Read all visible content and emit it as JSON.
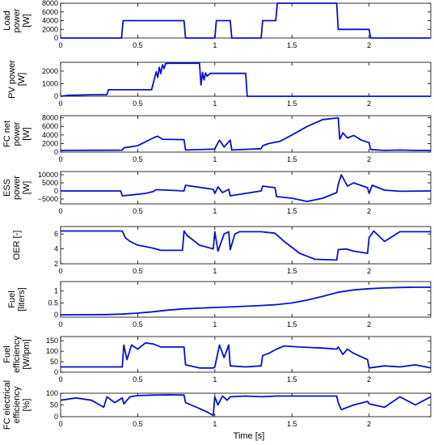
{
  "chart_data": {
    "type": "line",
    "xlabel": "Time [s]",
    "xlim": [
      0,
      2.4
    ],
    "xticks": [
      0,
      0.5,
      1,
      1.5,
      2
    ],
    "xtick_labels": [
      "0",
      "0.5",
      "1",
      "1.5",
      "2"
    ],
    "line_color": "#0a10c8",
    "panels": [
      {
        "id": "load",
        "ylabel_lines": [
          "Load",
          "power",
          "[W]"
        ],
        "ylim": [
          0,
          8000
        ],
        "yticks": [
          0,
          2000,
          4000,
          6000,
          8000
        ],
        "ytick_labels": [
          "0",
          "2000",
          "4000",
          "6000",
          "8000"
        ],
        "series": [
          {
            "x": [
              0,
              0.395,
              0.405,
              0.8,
              0.81,
              1.0,
              1.01,
              1.1,
              1.11,
              1.3,
              1.31,
              1.395,
              1.405,
              1.79,
              1.8,
              2.0,
              2.01,
              2.4
            ],
            "y": [
              0,
              0,
              4000,
              4000,
              0,
              0,
              4000,
              4000,
              0,
              0,
              4000,
              4000,
              8000,
              8000,
              2000,
              2000,
              0,
              0
            ]
          }
        ]
      },
      {
        "id": "pv",
        "ylabel_lines": [
          "PV power",
          "[W]"
        ],
        "ylim": [
          0,
          2700
        ],
        "yticks": [
          0,
          1000,
          2000
        ],
        "ytick_labels": [
          "0",
          "1000",
          "2000"
        ],
        "series": [
          {
            "x": [
              0,
              0.05,
              0.2,
              0.3,
              0.31,
              0.59,
              0.6,
              0.62,
              0.63,
              0.64,
              0.65,
              0.66,
              0.67,
              0.68,
              0.7,
              0.9,
              0.91,
              0.92,
              0.93,
              0.94,
              0.95,
              0.97,
              1.2,
              1.21,
              2.4
            ],
            "y": [
              0,
              80,
              120,
              130,
              520,
              520,
              1000,
              1950,
              1500,
              2300,
              1800,
              2500,
              2200,
              2600,
              2620,
              2620,
              900,
              1900,
              1300,
              1850,
              1600,
              1820,
              1820,
              0,
              0
            ]
          }
        ]
      },
      {
        "id": "fc",
        "ylabel_lines": [
          "FC net",
          "power",
          "[W]"
        ],
        "ylim": [
          0,
          8500
        ],
        "yticks": [
          0,
          2000,
          4000,
          6000,
          8000
        ],
        "ytick_labels": [
          "0",
          "2000",
          "4000",
          "6000",
          "8000"
        ],
        "series": [
          {
            "x": [
              0,
              0.4,
              0.41,
              0.5,
              0.55,
              0.6,
              0.63,
              0.66,
              0.8,
              0.81,
              1.0,
              1.01,
              1.03,
              1.06,
              1.1,
              1.11,
              1.3,
              1.31,
              1.35,
              1.42,
              1.5,
              1.6,
              1.7,
              1.8,
              1.81,
              1.83,
              1.86,
              1.9,
              1.95,
              2.0,
              2.01,
              2.1,
              2.2,
              2.3,
              2.4
            ],
            "y": [
              400,
              450,
              1000,
              1500,
              2400,
              3300,
              3700,
              3000,
              2900,
              500,
              700,
              1500,
              2800,
              1200,
              2800,
              500,
              800,
              1500,
              2000,
              2500,
              4000,
              6000,
              7600,
              8000,
              3000,
              4500,
              3300,
              3900,
              2800,
              2200,
              600,
              400,
              500,
              400,
              400
            ]
          }
        ]
      },
      {
        "id": "ess",
        "ylabel_lines": [
          "ESS",
          "power",
          "[W]"
        ],
        "ylim": [
          -8000,
          12000
        ],
        "yticks": [
          -5000,
          0,
          5000,
          10000
        ],
        "ytick_labels": [
          "−5000",
          "0",
          "5000",
          "10000"
        ],
        "series": [
          {
            "x": [
              0,
              0.39,
              0.4,
              0.45,
              0.55,
              0.6,
              0.62,
              0.8,
              0.81,
              0.99,
              1.0,
              1.02,
              1.05,
              1.09,
              1.1,
              1.3,
              1.31,
              1.39,
              1.4,
              1.5,
              1.6,
              1.7,
              1.79,
              1.8,
              1.82,
              1.86,
              1.9,
              1.99,
              2.0,
              2.02,
              2.1,
              2.2,
              2.4
            ],
            "y": [
              0,
              0,
              -3000,
              -2600,
              -1500,
              -400,
              800,
              0,
              3500,
              1000,
              -1500,
              2500,
              -1000,
              1000,
              -3000,
              0,
              3000,
              2000,
              -3500,
              -4500,
              -6500,
              -4500,
              -1000,
              4000,
              10000,
              3000,
              5000,
              2000,
              -1500,
              3500,
              500,
              -200,
              0
            ]
          }
        ]
      },
      {
        "id": "oer",
        "ylabel_lines": [
          "OER [-]"
        ],
        "ylim": [
          2,
          7
        ],
        "yticks": [
          2,
          4,
          6
        ],
        "ytick_labels": [
          "2",
          "4",
          "6"
        ],
        "series": [
          {
            "x": [
              0,
              0.4,
              0.42,
              0.45,
              0.5,
              0.55,
              0.6,
              0.65,
              0.79,
              0.8,
              0.82,
              0.9,
              0.99,
              1.0,
              1.02,
              1.06,
              1.09,
              1.1,
              1.13,
              1.16,
              1.2,
              1.3,
              1.39,
              1.45,
              1.55,
              1.65,
              1.79,
              1.8,
              1.85,
              1.9,
              1.99,
              2.0,
              2.03,
              2.1,
              2.2,
              2.4
            ],
            "y": [
              6.4,
              6.4,
              5.5,
              5.0,
              4.5,
              4.3,
              4.1,
              3.8,
              3.8,
              6.4,
              5.8,
              4.5,
              4.0,
              6.3,
              3.7,
              6.0,
              6.3,
              3.9,
              6.0,
              6.3,
              6.3,
              6.3,
              6.1,
              5.0,
              3.4,
              2.6,
              2.5,
              3.9,
              4.0,
              3.7,
              3.4,
              5.5,
              6.4,
              5.0,
              6.3,
              6.3
            ]
          }
        ]
      },
      {
        "id": "fuel",
        "ylabel_lines": [
          "Fuel",
          "[liters]"
        ],
        "ylim": [
          -0.1,
          1.4
        ],
        "yticks": [
          0,
          0.5,
          1
        ],
        "ytick_labels": [
          "0",
          "0.5",
          "1"
        ],
        "series": [
          {
            "x": [
              0,
              0.3,
              0.4,
              0.5,
              0.6,
              0.7,
              0.8,
              0.9,
              1.0,
              1.1,
              1.2,
              1.3,
              1.4,
              1.5,
              1.6,
              1.7,
              1.8,
              1.9,
              2.0,
              2.1,
              2.2,
              2.3,
              2.4
            ],
            "y": [
              0,
              0.01,
              0.03,
              0.07,
              0.13,
              0.2,
              0.25,
              0.28,
              0.31,
              0.33,
              0.36,
              0.39,
              0.43,
              0.5,
              0.62,
              0.78,
              0.95,
              1.05,
              1.1,
              1.13,
              1.15,
              1.16,
              1.16
            ]
          }
        ]
      },
      {
        "id": "fuel_eff",
        "ylabel_lines": [
          "Fuel",
          "efficiency",
          "[W/lpm]"
        ],
        "ylim": [
          0,
          170
        ],
        "yticks": [
          0,
          50,
          100,
          150
        ],
        "ytick_labels": [
          "0",
          "50",
          "100",
          "150"
        ],
        "series": [
          {
            "x": [
              0,
              0.4,
              0.41,
              0.43,
              0.46,
              0.5,
              0.55,
              0.6,
              0.65,
              0.8,
              0.81,
              0.9,
              0.99,
              1.0,
              1.03,
              1.06,
              1.09,
              1.1,
              1.2,
              1.3,
              1.31,
              1.35,
              1.4,
              1.45,
              1.55,
              1.7,
              1.79,
              1.8,
              1.83,
              1.86,
              1.9,
              1.99,
              2.0,
              2.1,
              2.2,
              2.3,
              2.4
            ],
            "y": [
              25,
              25,
              130,
              60,
              130,
              110,
              140,
              135,
              120,
              120,
              35,
              20,
              20,
              25,
              130,
              70,
              130,
              30,
              25,
              30,
              80,
              90,
              110,
              125,
              120,
              115,
              110,
              120,
              85,
              110,
              90,
              60,
              20,
              30,
              25,
              35,
              20
            ]
          }
        ]
      },
      {
        "id": "fc_eff",
        "ylabel_lines": [
          "FC electrical",
          "efficiency",
          "[%]"
        ],
        "ylim": [
          0,
          100
        ],
        "yticks": [
          0,
          50,
          100
        ],
        "ytick_labels": [
          "0",
          "50",
          "100"
        ],
        "series": [
          {
            "x": [
              0,
              0.1,
              0.2,
              0.28,
              0.3,
              0.35,
              0.4,
              0.41,
              0.45,
              0.5,
              0.6,
              0.7,
              0.8,
              0.81,
              0.9,
              0.95,
              0.99,
              1.0,
              1.02,
              1.05,
              1.08,
              1.1,
              1.2,
              1.3,
              1.4,
              1.6,
              1.75,
              1.79,
              1.8,
              1.82,
              1.9,
              1.99,
              2.0,
              2.1,
              2.2,
              2.3,
              2.4
            ],
            "y": [
              70,
              80,
              70,
              40,
              85,
              60,
              80,
              55,
              85,
              90,
              92,
              93,
              92,
              60,
              35,
              20,
              5,
              85,
              50,
              88,
              70,
              85,
              88,
              85,
              88,
              88,
              88,
              88,
              60,
              30,
              50,
              65,
              55,
              40,
              85,
              50,
              85
            ]
          }
        ]
      }
    ]
  }
}
